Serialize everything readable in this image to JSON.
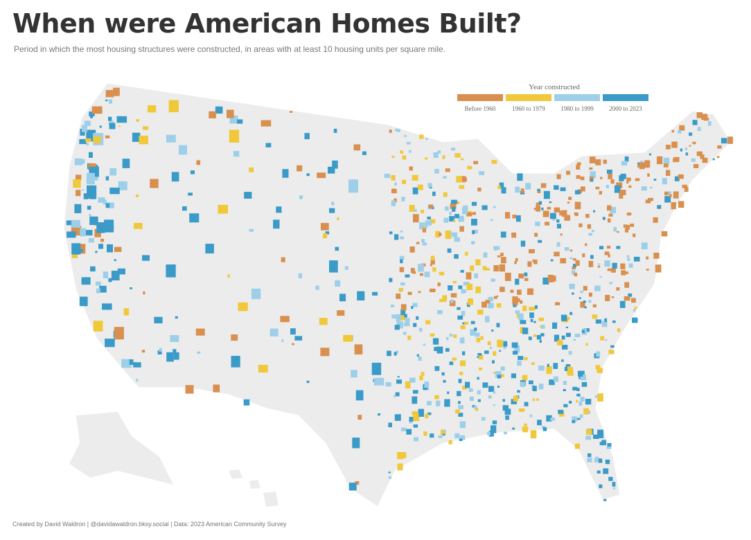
{
  "header": {
    "title": "When were American Homes Built?",
    "subtitle": "Period in which the most housing structures were constructed, in areas with at least 10 housing units per square mile."
  },
  "legend": {
    "title": "Year constructed",
    "items": [
      {
        "label": "Before 1960",
        "color": "#d98f4e"
      },
      {
        "label": "1960 to 1979",
        "color": "#f0c83a"
      },
      {
        "label": "1980 to 1999",
        "color": "#9ecfe9"
      },
      {
        "label": "2000 to 2023",
        "color": "#3a9bc8"
      }
    ]
  },
  "footer": {
    "credit": "Created by David Waldron | @davidawaldron.bksy.social | Data: 2023 American Community Survey"
  }
}
